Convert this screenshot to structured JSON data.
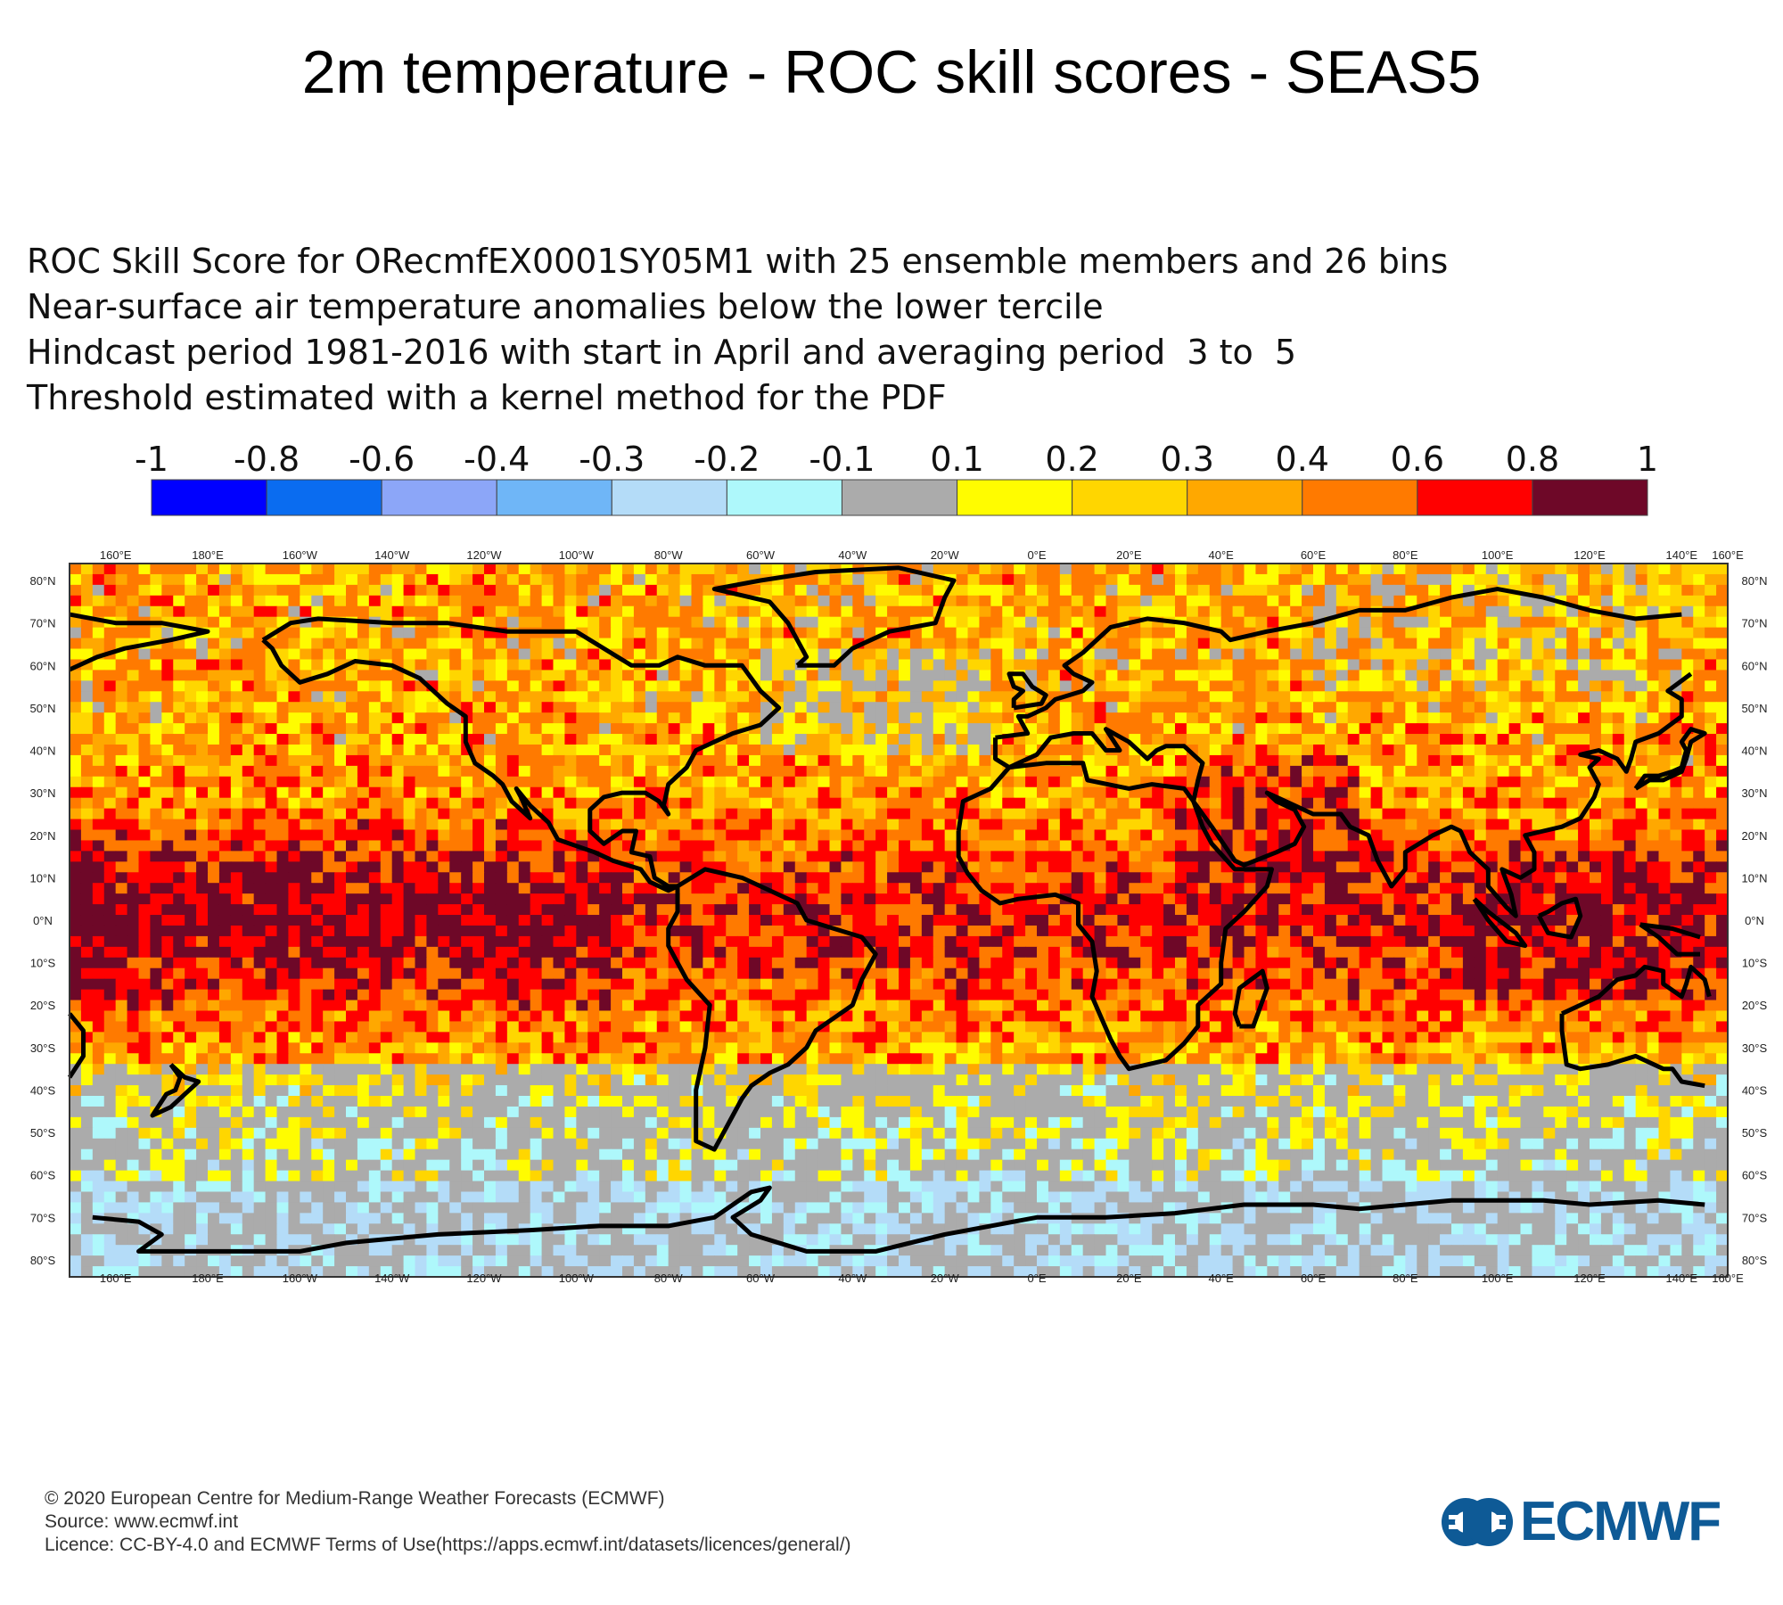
{
  "title": "2m temperature - ROC skill scores - SEAS5",
  "subtitle": [
    "ROC Skill Score for ORecmfEX0001SY05M1 with 25 ensemble members and 26 bins",
    "Near-surface air temperature anomalies below the lower tercile",
    "Hindcast period 1981-2016 with start in April and averaging period  3 to  5",
    "Threshold estimated with a kernel method for the PDF"
  ],
  "legend": {
    "labels": [
      "-1",
      "-0.8",
      "-0.6",
      "-0.4",
      "-0.3",
      "-0.2",
      "-0.1",
      "0.1",
      "0.2",
      "0.3",
      "0.4",
      "0.6",
      "0.8",
      "1"
    ],
    "colors": [
      "#0000ff",
      "#0a6cf0",
      "#8ca6f8",
      "#6fb6f7",
      "#b4dcf8",
      "#aef8fb",
      "#ababab",
      "#fffc00",
      "#ffd600",
      "#ffa800",
      "#ff7a00",
      "#ff0000",
      "#6e0828"
    ]
  },
  "map": {
    "lon_labels": [
      "160°E",
      "180°E",
      "160°W",
      "140°W",
      "120°W",
      "100°W",
      "80°W",
      "60°W",
      "40°W",
      "20°W",
      "0°E",
      "20°E",
      "40°E",
      "60°E",
      "80°E",
      "100°E",
      "120°E",
      "140°E",
      "160°E"
    ],
    "lat_labels": [
      "80°N",
      "70°N",
      "60°N",
      "50°N",
      "40°N",
      "30°N",
      "20°N",
      "10°N",
      "0°N",
      "10°S",
      "20°S",
      "30°S",
      "40°S",
      "50°S",
      "60°S",
      "70°S",
      "80°S"
    ],
    "regions": [
      {
        "name": "tropical-pacific",
        "level": "0.8 to 1"
      },
      {
        "name": "tropical-atlantic",
        "level": "0.6 to 0.8"
      },
      {
        "name": "southern-ocean",
        "level": "-0.3 to 0.2"
      },
      {
        "name": "antarctica",
        "level": "-0.2 to 0.2"
      }
    ]
  },
  "footer": [
    "© 2020 European Centre for Medium-Range Weather Forecasts (ECMWF)",
    "Source: www.ecmwf.int",
    "Licence: CC-BY-4.0 and ECMWF Terms of Use(https://apps.ecmwf.int/datasets/licences/general/)"
  ],
  "logo": {
    "text": "ECMWF",
    "color": "#0e5a96"
  }
}
